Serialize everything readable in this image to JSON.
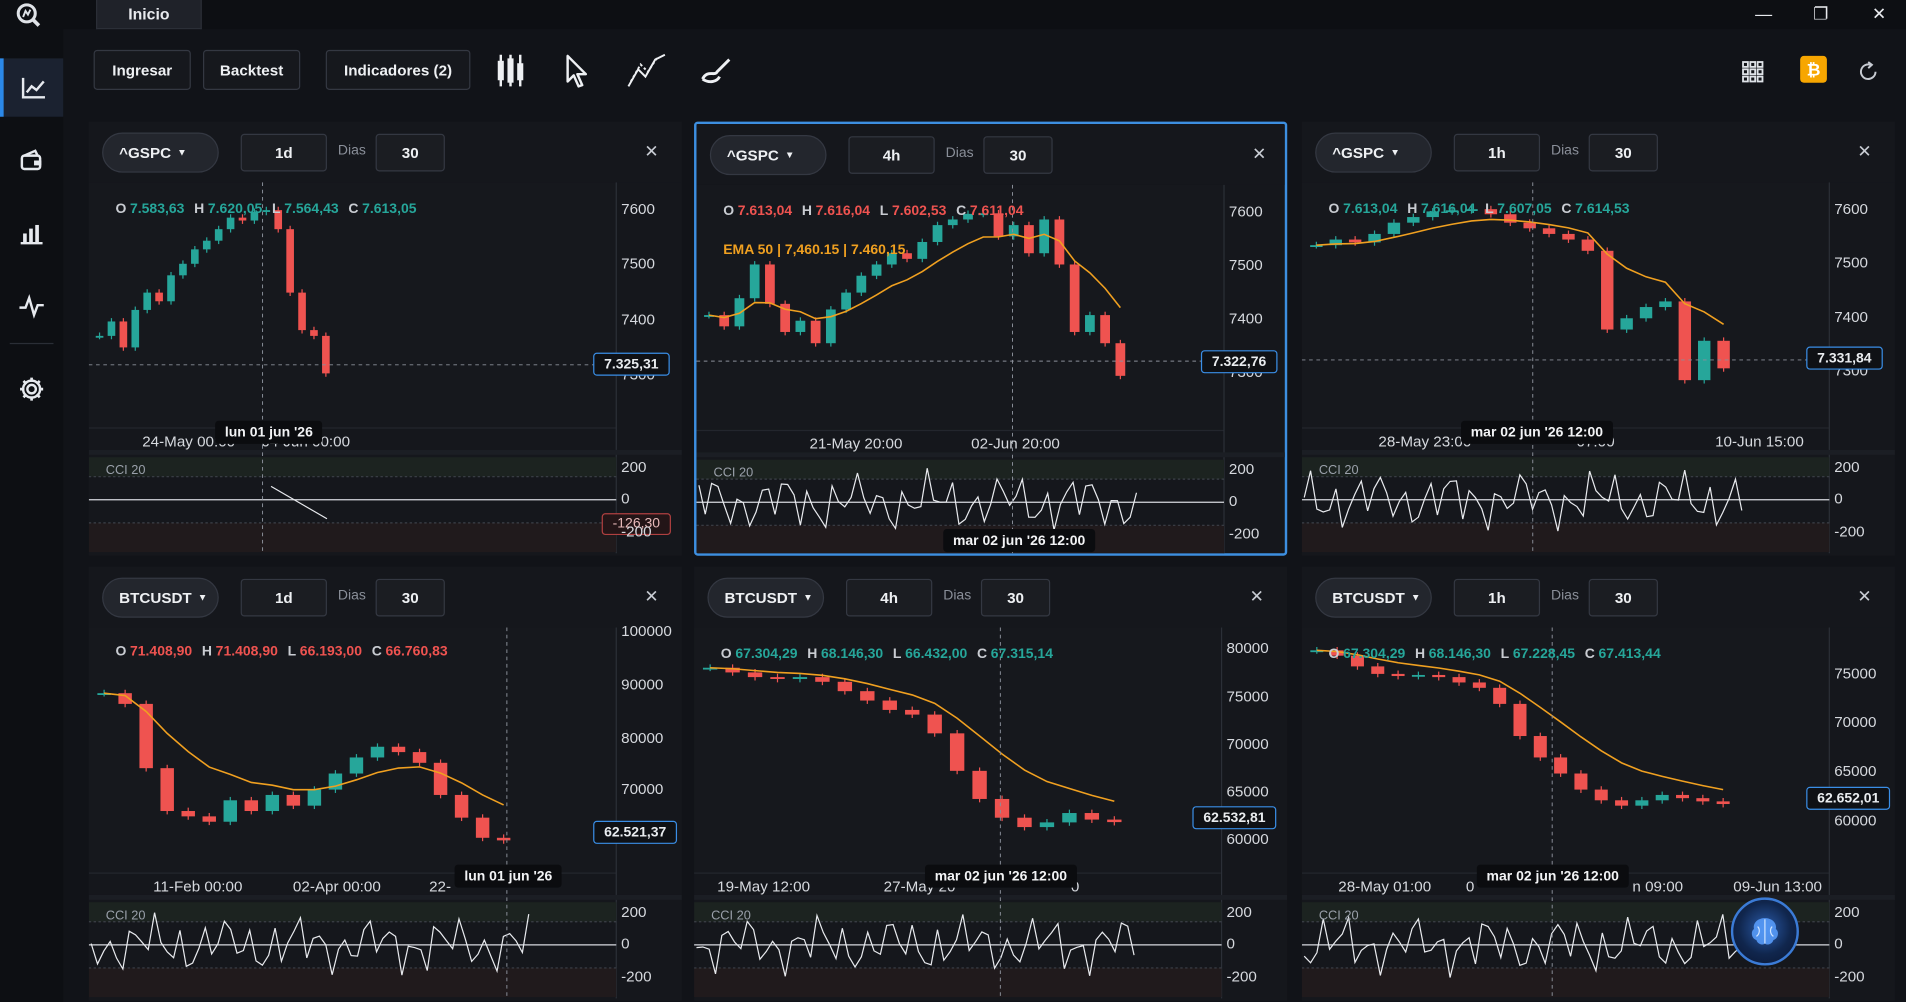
{
  "window": {
    "tab": "Inicio",
    "min": "—",
    "max": "❐",
    "close": "✕"
  },
  "toolbar": {
    "ingresar": "Ingresar",
    "backtest": "Backtest",
    "indicadores": "Indicadores (2)"
  },
  "icons": {
    "sidebar": [
      "line-chart-icon",
      "wallet-icon",
      "bar-chart-icon",
      "pulse-icon",
      "gear-icon"
    ],
    "toolbar": [
      "candles-icon",
      "cursor-icon",
      "draw-lines-icon",
      "brush-icon"
    ],
    "right": [
      "grid-icon",
      "bitcoin-icon",
      "refresh-icon"
    ]
  },
  "colors": {
    "up": "#26a69a",
    "down": "#ef5350",
    "ema": "#f0a020",
    "accent": "#3a8ee6",
    "bitcoin": "#f7a600"
  },
  "dias_label": "Dias",
  "cci_label": "CCI 20",
  "panels": [
    {
      "symbol": "^GSPC",
      "timeframe": "1d",
      "days": "30",
      "ohlc": {
        "o": "7.583,63",
        "h": "7.620,05",
        "l": "7.564,43",
        "c": "7.613,05"
      },
      "ema": null,
      "y_labels": [
        "7600",
        "7500",
        "7400",
        "7300"
      ],
      "x_labels": [
        "24-May 00:00",
        "04-Jun 00:00"
      ],
      "price": "7.325,31",
      "time_tag": "lun 01 jun '26",
      "cci_value": "-126,30",
      "cci_y_labels": [
        "200",
        "0",
        "-200"
      ]
    },
    {
      "symbol": "^GSPC",
      "timeframe": "4h",
      "days": "30",
      "ohlc": {
        "o": "7.613,04",
        "h": "7.616,04",
        "l": "7.602,53",
        "c": "7.611,04"
      },
      "ema": "EMA 50 | 7,460.15 | 7.460,15",
      "y_labels": [
        "7600",
        "7500",
        "7400",
        "7300"
      ],
      "x_labels": [
        "21-May 20:00",
        "02-Jun 20:00"
      ],
      "price": "7.322,76",
      "time_tag": "mar 02 jun '26  12:00",
      "cci_value": null,
      "cci_y_labels": [
        "200",
        "0",
        "-200"
      ]
    },
    {
      "symbol": "^GSPC",
      "timeframe": "1h",
      "days": "30",
      "ohlc": {
        "o": "7.613,04",
        "h": "7.616,04",
        "l": "7.607,05",
        "c": "7.614,53"
      },
      "ema": null,
      "y_labels": [
        "7600",
        "7500",
        "7400",
        "7300"
      ],
      "x_labels": [
        "28-May 23:00",
        "07:00",
        "10-Jun 15:00"
      ],
      "price": "7.331,84",
      "time_tag": "mar 02 jun '26  12:00",
      "cci_value": null,
      "cci_y_labels": [
        "200",
        "0",
        "-200"
      ]
    },
    {
      "symbol": "BTCUSDT",
      "timeframe": "1d",
      "days": "30",
      "ohlc": {
        "o": "71.408,90",
        "h": "71.408,90",
        "l": "66.193,00",
        "c": "66.760,83"
      },
      "ema": null,
      "y_labels": [
        "100000",
        "90000",
        "80000",
        "70000",
        "60000"
      ],
      "x_labels": [
        "11-Feb 00:00",
        "02-Apr 00:00",
        "22-"
      ],
      "price": "62.521,37",
      "time_tag": "lun 01 jun '26",
      "cci_value": null,
      "cci_y_labels": [
        "200",
        "0",
        "-200"
      ]
    },
    {
      "symbol": "BTCUSDT",
      "timeframe": "4h",
      "days": "30",
      "ohlc": {
        "o": "67.304,29",
        "h": "68.146,30",
        "l": "66.432,00",
        "c": "67.315,14"
      },
      "ema": null,
      "y_labels": [
        "80000",
        "75000",
        "70000",
        "65000",
        "60000"
      ],
      "x_labels": [
        "19-May 12:00",
        "27-May 20",
        "0"
      ],
      "price": "62.532,81",
      "time_tag": "mar 02 jun '26  12:00",
      "cci_value": null,
      "cci_y_labels": [
        "200",
        "0",
        "-200"
      ]
    },
    {
      "symbol": "BTCUSDT",
      "timeframe": "1h",
      "days": "30",
      "ohlc": {
        "o": "67.304,29",
        "h": "68.146,30",
        "l": "67.228,45",
        "c": "67.413,44"
      },
      "ema": null,
      "y_labels": [
        "75000",
        "70000",
        "65000",
        "60000"
      ],
      "x_labels": [
        "28-May 01:00",
        "0",
        "n 09:00",
        "09-Jun 13:00"
      ],
      "price": "62.652,01",
      "time_tag": "mar 02 jun '26  12:00",
      "cci_value": null,
      "cci_y_labels": [
        "200",
        "0",
        "-200"
      ]
    }
  ],
  "chart_data": [
    {
      "type": "candlestick",
      "title": "^GSPC 1d",
      "ylim": [
        7250,
        7640
      ],
      "indicator": "CCI 20",
      "close": [
        7395,
        7420,
        7375,
        7440,
        7470,
        7455,
        7500,
        7520,
        7545,
        7560,
        7580,
        7600,
        7595,
        7610,
        7613,
        7580,
        7470,
        7405,
        7395,
        7330
      ]
    },
    {
      "type": "candlestick",
      "title": "^GSPC 4h",
      "ylim": [
        7240,
        7640
      ],
      "indicator": "EMA 50 / CCI 20",
      "close": [
        7430,
        7410,
        7460,
        7520,
        7450,
        7400,
        7420,
        7380,
        7440,
        7470,
        7500,
        7520,
        7540,
        7530,
        7560,
        7590,
        7600,
        7610,
        7611,
        7570,
        7590,
        7540,
        7600,
        7520,
        7400,
        7430,
        7380,
        7322
      ]
    },
    {
      "type": "candlestick",
      "title": "^GSPC 1h",
      "ylim": [
        7240,
        7640
      ],
      "indicator": "EMA 50 / CCI 20",
      "close": [
        7550,
        7560,
        7555,
        7570,
        7590,
        7600,
        7610,
        7612,
        7614,
        7605,
        7590,
        7580,
        7570,
        7560,
        7540,
        7400,
        7420,
        7440,
        7450,
        7310,
        7380,
        7331
      ]
    },
    {
      "type": "candlestick",
      "title": "BTCUSDT 1d",
      "ylim": [
        58000,
        100000
      ],
      "indicator": "EMA 50 / CCI 20",
      "close": [
        90000,
        88000,
        76000,
        68000,
        67000,
        66000,
        70000,
        68000,
        71000,
        69000,
        72000,
        75000,
        78000,
        80000,
        79000,
        77000,
        71000,
        66760,
        63000,
        62521
      ]
    },
    {
      "type": "candlestick",
      "title": "BTCUSDT 4h",
      "ylim": [
        58000,
        82000
      ],
      "indicator": "EMA 50 / CCI 20",
      "close": [
        79000,
        78500,
        78000,
        77800,
        78000,
        77500,
        76500,
        75500,
        74500,
        74000,
        72000,
        68000,
        65000,
        63000,
        62000,
        62500,
        63500,
        62800,
        62532
      ]
    },
    {
      "type": "candlestick",
      "title": "BTCUSDT 1h",
      "ylim": [
        57000,
        78000
      ],
      "indicator": "EMA 50 / CCI 20",
      "close": [
        77000,
        76500,
        75500,
        74800,
        74600,
        74700,
        74500,
        74000,
        73500,
        72000,
        69000,
        67000,
        65500,
        64000,
        63000,
        62500,
        63000,
        63500,
        63200,
        62900,
        62652
      ]
    }
  ]
}
